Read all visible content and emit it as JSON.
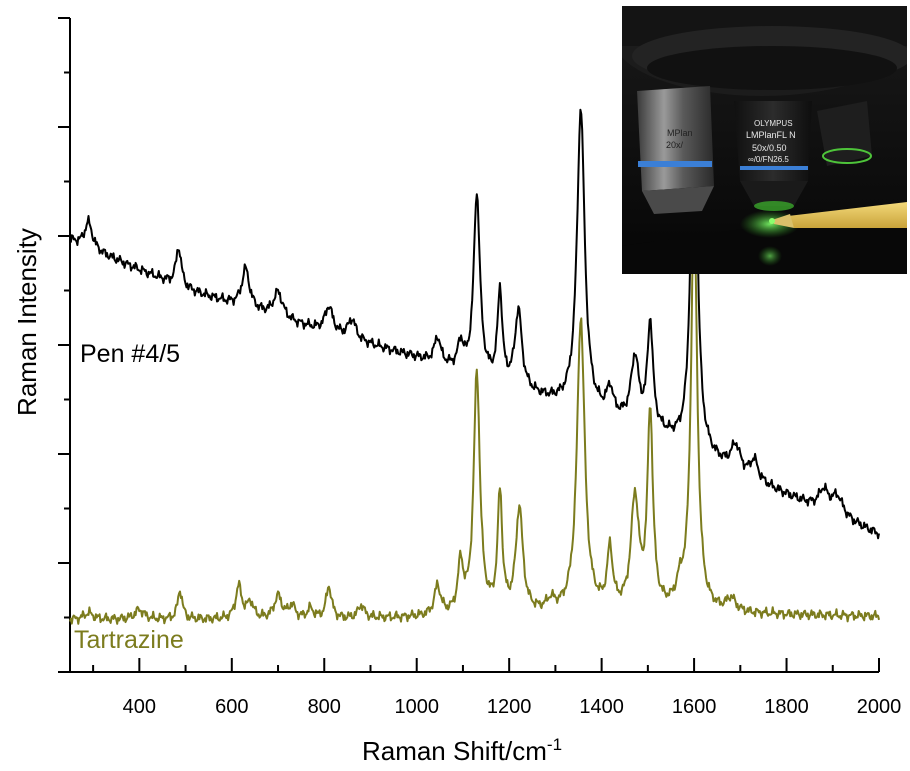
{
  "chart_data": {
    "type": "line",
    "xlabel": "Raman Shift/cm",
    "xlabel_superscript": "-1",
    "ylabel": "Raman Intensity",
    "xlim": [
      250,
      2000
    ],
    "ylim": [
      0,
      1
    ],
    "x_ticks": [
      400,
      600,
      800,
      1000,
      1200,
      1400,
      1600,
      1800,
      2000
    ],
    "x_tick_labels": [
      "400",
      "600",
      "800",
      "1000",
      "1200",
      "1400",
      "1600",
      "1800",
      "2000"
    ],
    "y_tick_labels_shown": false,
    "grid": false,
    "legend": "none (series labelled inline)",
    "series": [
      {
        "name": "Pen #4/5",
        "color": "#000000",
        "offset": 0.43,
        "baseline": [
          [
            250,
            0.23
          ],
          [
            500,
            0.155
          ],
          [
            700,
            0.11
          ],
          [
            1000,
            0.05
          ],
          [
            1300,
            -0.02
          ],
          [
            1500,
            -0.06
          ],
          [
            1700,
            -0.13
          ],
          [
            2000,
            -0.22
          ]
        ],
        "peaks": [
          [
            290,
            0.04,
            10
          ],
          [
            485,
            0.06,
            7
          ],
          [
            630,
            0.06,
            10
          ],
          [
            700,
            0.04,
            12
          ],
          [
            810,
            0.04,
            10
          ],
          [
            860,
            0.03,
            10
          ],
          [
            1045,
            0.04,
            8
          ],
          [
            1095,
            0.04,
            7
          ],
          [
            1130,
            0.28,
            8
          ],
          [
            1180,
            0.14,
            6
          ],
          [
            1220,
            0.12,
            9
          ],
          [
            1355,
            0.46,
            10
          ],
          [
            1418,
            0.04,
            8
          ],
          [
            1472,
            0.1,
            10
          ],
          [
            1505,
            0.16,
            7
          ],
          [
            1600,
            0.62,
            8
          ],
          [
            1690,
            0.04,
            12
          ],
          [
            1730,
            0.03,
            10
          ],
          [
            1880,
            0.03,
            12
          ],
          [
            1910,
            0.03,
            15
          ]
        ]
      },
      {
        "name": "Tartrazine",
        "color": "#7c7c1e",
        "offset": 0,
        "baseline": [
          [
            250,
            0.08
          ],
          [
            800,
            0.08
          ],
          [
            1500,
            0.09
          ],
          [
            2000,
            0.085
          ]
        ],
        "peaks": [
          [
            290,
            0.01,
            12
          ],
          [
            400,
            0.015,
            12
          ],
          [
            488,
            0.045,
            6
          ],
          [
            615,
            0.05,
            8
          ],
          [
            640,
            0.025,
            8
          ],
          [
            700,
            0.035,
            10
          ],
          [
            730,
            0.02,
            8
          ],
          [
            770,
            0.015,
            8
          ],
          [
            810,
            0.05,
            7
          ],
          [
            880,
            0.02,
            8
          ],
          [
            1045,
            0.045,
            8
          ],
          [
            1095,
            0.075,
            7
          ],
          [
            1130,
            0.37,
            8
          ],
          [
            1180,
            0.18,
            6
          ],
          [
            1222,
            0.16,
            9
          ],
          [
            1290,
            0.015,
            10
          ],
          [
            1355,
            0.45,
            10
          ],
          [
            1418,
            0.09,
            7
          ],
          [
            1472,
            0.17,
            10
          ],
          [
            1505,
            0.3,
            7
          ],
          [
            1570,
            0.03,
            10
          ],
          [
            1600,
            0.62,
            8
          ],
          [
            1680,
            0.02,
            12
          ]
        ]
      }
    ]
  },
  "labels": {
    "pen": "Pen #4/5",
    "tartrazine": "Tartrazine"
  },
  "inset": {
    "description_icon": "microscope-photo",
    "brand": "OLYMPUS",
    "objective_left": "MPlan",
    "objective_left_mag": "20x/",
    "objective_center_model": "LMPlanFL N",
    "objective_center_spec": "50x/0.50",
    "objective_center_spec2": "∞/0/FN26.5"
  },
  "colors": {
    "axis": "#000000",
    "tartrazine": "#7c7c1e",
    "pen_line": "#000000"
  }
}
